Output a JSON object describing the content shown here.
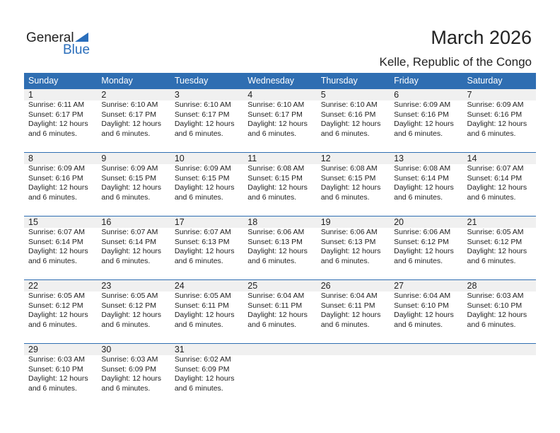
{
  "header": {
    "logo_general": "General",
    "logo_blue": "Blue",
    "title": "March 2026",
    "location": "Kelle, Republic of the Congo"
  },
  "weekdays": [
    "Sunday",
    "Monday",
    "Tuesday",
    "Wednesday",
    "Thursday",
    "Friday",
    "Saturday"
  ],
  "colors": {
    "accent": "#2f6eb2",
    "date_band": "#f0f0f0"
  },
  "days": [
    {
      "date": "1",
      "sunrise": "Sunrise: 6:11 AM",
      "sunset": "Sunset: 6:17 PM"
    },
    {
      "date": "2",
      "sunrise": "Sunrise: 6:10 AM",
      "sunset": "Sunset: 6:17 PM"
    },
    {
      "date": "3",
      "sunrise": "Sunrise: 6:10 AM",
      "sunset": "Sunset: 6:17 PM"
    },
    {
      "date": "4",
      "sunrise": "Sunrise: 6:10 AM",
      "sunset": "Sunset: 6:17 PM"
    },
    {
      "date": "5",
      "sunrise": "Sunrise: 6:10 AM",
      "sunset": "Sunset: 6:16 PM"
    },
    {
      "date": "6",
      "sunrise": "Sunrise: 6:09 AM",
      "sunset": "Sunset: 6:16 PM"
    },
    {
      "date": "7",
      "sunrise": "Sunrise: 6:09 AM",
      "sunset": "Sunset: 6:16 PM"
    },
    {
      "date": "8",
      "sunrise": "Sunrise: 6:09 AM",
      "sunset": "Sunset: 6:16 PM"
    },
    {
      "date": "9",
      "sunrise": "Sunrise: 6:09 AM",
      "sunset": "Sunset: 6:15 PM"
    },
    {
      "date": "10",
      "sunrise": "Sunrise: 6:09 AM",
      "sunset": "Sunset: 6:15 PM"
    },
    {
      "date": "11",
      "sunrise": "Sunrise: 6:08 AM",
      "sunset": "Sunset: 6:15 PM"
    },
    {
      "date": "12",
      "sunrise": "Sunrise: 6:08 AM",
      "sunset": "Sunset: 6:15 PM"
    },
    {
      "date": "13",
      "sunrise": "Sunrise: 6:08 AM",
      "sunset": "Sunset: 6:14 PM"
    },
    {
      "date": "14",
      "sunrise": "Sunrise: 6:07 AM",
      "sunset": "Sunset: 6:14 PM"
    },
    {
      "date": "15",
      "sunrise": "Sunrise: 6:07 AM",
      "sunset": "Sunset: 6:14 PM"
    },
    {
      "date": "16",
      "sunrise": "Sunrise: 6:07 AM",
      "sunset": "Sunset: 6:14 PM"
    },
    {
      "date": "17",
      "sunrise": "Sunrise: 6:07 AM",
      "sunset": "Sunset: 6:13 PM"
    },
    {
      "date": "18",
      "sunrise": "Sunrise: 6:06 AM",
      "sunset": "Sunset: 6:13 PM"
    },
    {
      "date": "19",
      "sunrise": "Sunrise: 6:06 AM",
      "sunset": "Sunset: 6:13 PM"
    },
    {
      "date": "20",
      "sunrise": "Sunrise: 6:06 AM",
      "sunset": "Sunset: 6:12 PM"
    },
    {
      "date": "21",
      "sunrise": "Sunrise: 6:05 AM",
      "sunset": "Sunset: 6:12 PM"
    },
    {
      "date": "22",
      "sunrise": "Sunrise: 6:05 AM",
      "sunset": "Sunset: 6:12 PM"
    },
    {
      "date": "23",
      "sunrise": "Sunrise: 6:05 AM",
      "sunset": "Sunset: 6:12 PM"
    },
    {
      "date": "24",
      "sunrise": "Sunrise: 6:05 AM",
      "sunset": "Sunset: 6:11 PM"
    },
    {
      "date": "25",
      "sunrise": "Sunrise: 6:04 AM",
      "sunset": "Sunset: 6:11 PM"
    },
    {
      "date": "26",
      "sunrise": "Sunrise: 6:04 AM",
      "sunset": "Sunset: 6:11 PM"
    },
    {
      "date": "27",
      "sunrise": "Sunrise: 6:04 AM",
      "sunset": "Sunset: 6:10 PM"
    },
    {
      "date": "28",
      "sunrise": "Sunrise: 6:03 AM",
      "sunset": "Sunset: 6:10 PM"
    },
    {
      "date": "29",
      "sunrise": "Sunrise: 6:03 AM",
      "sunset": "Sunset: 6:10 PM"
    },
    {
      "date": "30",
      "sunrise": "Sunrise: 6:03 AM",
      "sunset": "Sunset: 6:09 PM"
    },
    {
      "date": "31",
      "sunrise": "Sunrise: 6:02 AM",
      "sunset": "Sunset: 6:09 PM"
    }
  ],
  "daylight_line1": "Daylight: 12 hours",
  "daylight_line2": "and 6 minutes."
}
